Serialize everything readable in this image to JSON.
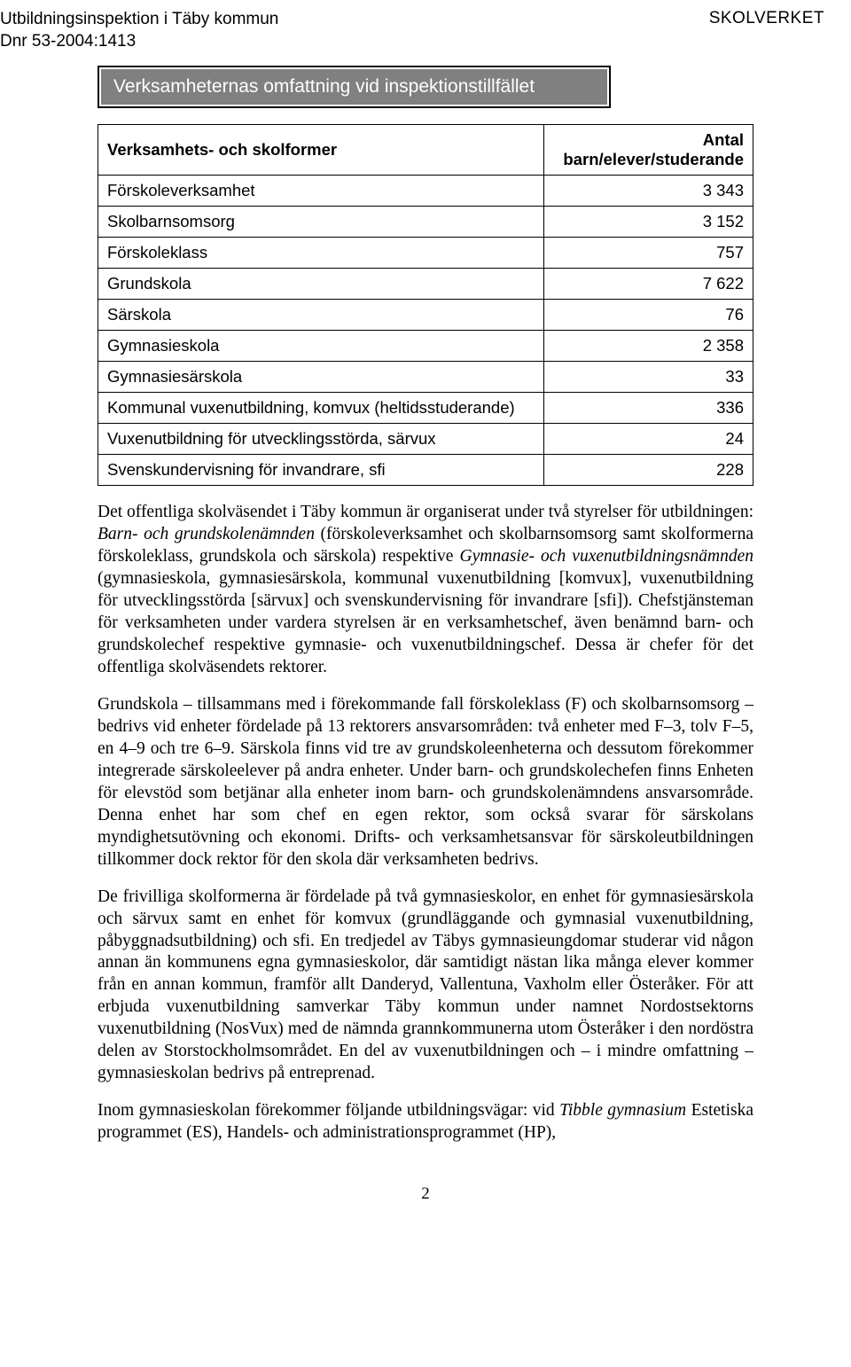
{
  "header": {
    "left_line1": "Utbildningsinspektion i Täby kommun",
    "left_line2": "Dnr 53-2004:1413",
    "right": "SKOLVERKET"
  },
  "section_title": "Verksamheternas omfattning vid inspektionstillfället",
  "table": {
    "header_left": "Verksamhets- och skolformer",
    "header_right": "Antal barn/elever/studerande",
    "rows": [
      {
        "label": "Förskoleverksamhet",
        "value": "3 343"
      },
      {
        "label": "Skolbarnsomsorg",
        "value": "3 152"
      },
      {
        "label": "Förskoleklass",
        "value": "757"
      },
      {
        "label": "Grundskola",
        "value": "7 622"
      },
      {
        "label": "Särskola",
        "value": "76"
      },
      {
        "label": "Gymnasieskola",
        "value": "2 358"
      },
      {
        "label": "Gymnasiesärskola",
        "value": "33"
      },
      {
        "label": "Kommunal vuxenutbildning, komvux (heltidsstuderande)",
        "value": "336"
      },
      {
        "label": "Vuxenutbildning för utvecklingsstörda, särvux",
        "value": "24"
      },
      {
        "label": "Svenskundervisning för invandrare, sfi",
        "value": "228"
      }
    ]
  },
  "paragraphs": {
    "p1a": "Det offentliga skolväsendet i Täby kommun är organiserat under två styrelser för utbildningen: ",
    "p1i1": "Barn- och grundskolenämnden",
    "p1b": " (förskoleverksamhet och skolbarnsomsorg samt skolformerna förskoleklass, grundskola och särskola) respektive ",
    "p1i2": "Gymnasie- och vuxenutbildningsnämnden",
    "p1c": " (gymnasieskola, gymnasiesärskola, kommunal vuxenutbildning [komvux], vuxenutbildning för utvecklingsstörda [särvux] och svenskundervisning för invandrare [sfi]). Chefstjänsteman för verksamheten under vardera styrelsen är en verksamhetschef, även benämnd barn- och grundskolechef respektive gymnasie- och vuxenutbildningschef. Dessa är chefer för det offentliga skolväsendets rektorer.",
    "p2": "Grundskola – tillsammans med i förekommande fall förskoleklass (F) och skolbarnsomsorg – bedrivs vid enheter fördelade på 13 rektorers ansvarsområden: två enheter med F–3, tolv F–5, en 4–9 och tre 6–9. Särskola finns vid tre av grundskoleenheterna och dessutom förekommer integrerade särskoleelever på andra enheter. Under barn- och grundskolechefen finns Enheten för elevstöd som betjänar alla enheter inom barn- och grundskolenämndens ansvarsområde. Denna enhet har som chef en egen rektor, som också svarar för särskolans myndighetsutövning och ekonomi. Drifts- och verksamhetsansvar för särskoleutbildningen tillkommer dock rektor för den skola där verksamheten bedrivs.",
    "p3": "De frivilliga skolformerna är fördelade på två gymnasieskolor, en enhet för gymnasiesärskola och särvux samt en enhet för komvux (grundläggande och gymnasial vuxenutbildning, påbyggnadsutbildning) och sfi. En tredjedel av Täbys gymnasieungdomar studerar vid någon annan än kommunens egna gymnasieskolor, där samtidigt nästan lika många elever kommer från en annan kommun, framför allt Danderyd, Vallentuna, Vaxholm eller Österåker. För att erbjuda vuxenutbildning samverkar Täby kommun under namnet Nordostsektorns vuxenutbildning (NosVux) med de nämnda grannkommunerna utom Österåker i den nordöstra delen av Storstockholmsområdet. En del av vuxenutbildningen och – i mindre omfattning – gymnasieskolan bedrivs på entreprenad.",
    "p4a": "Inom gymnasieskolan förekommer följande utbildningsvägar: vid ",
    "p4i": "Tibble gymnasium",
    "p4b": " Estetiska programmet (ES), Handels- och administrationsprogrammet (HP),"
  },
  "page_number": "2"
}
